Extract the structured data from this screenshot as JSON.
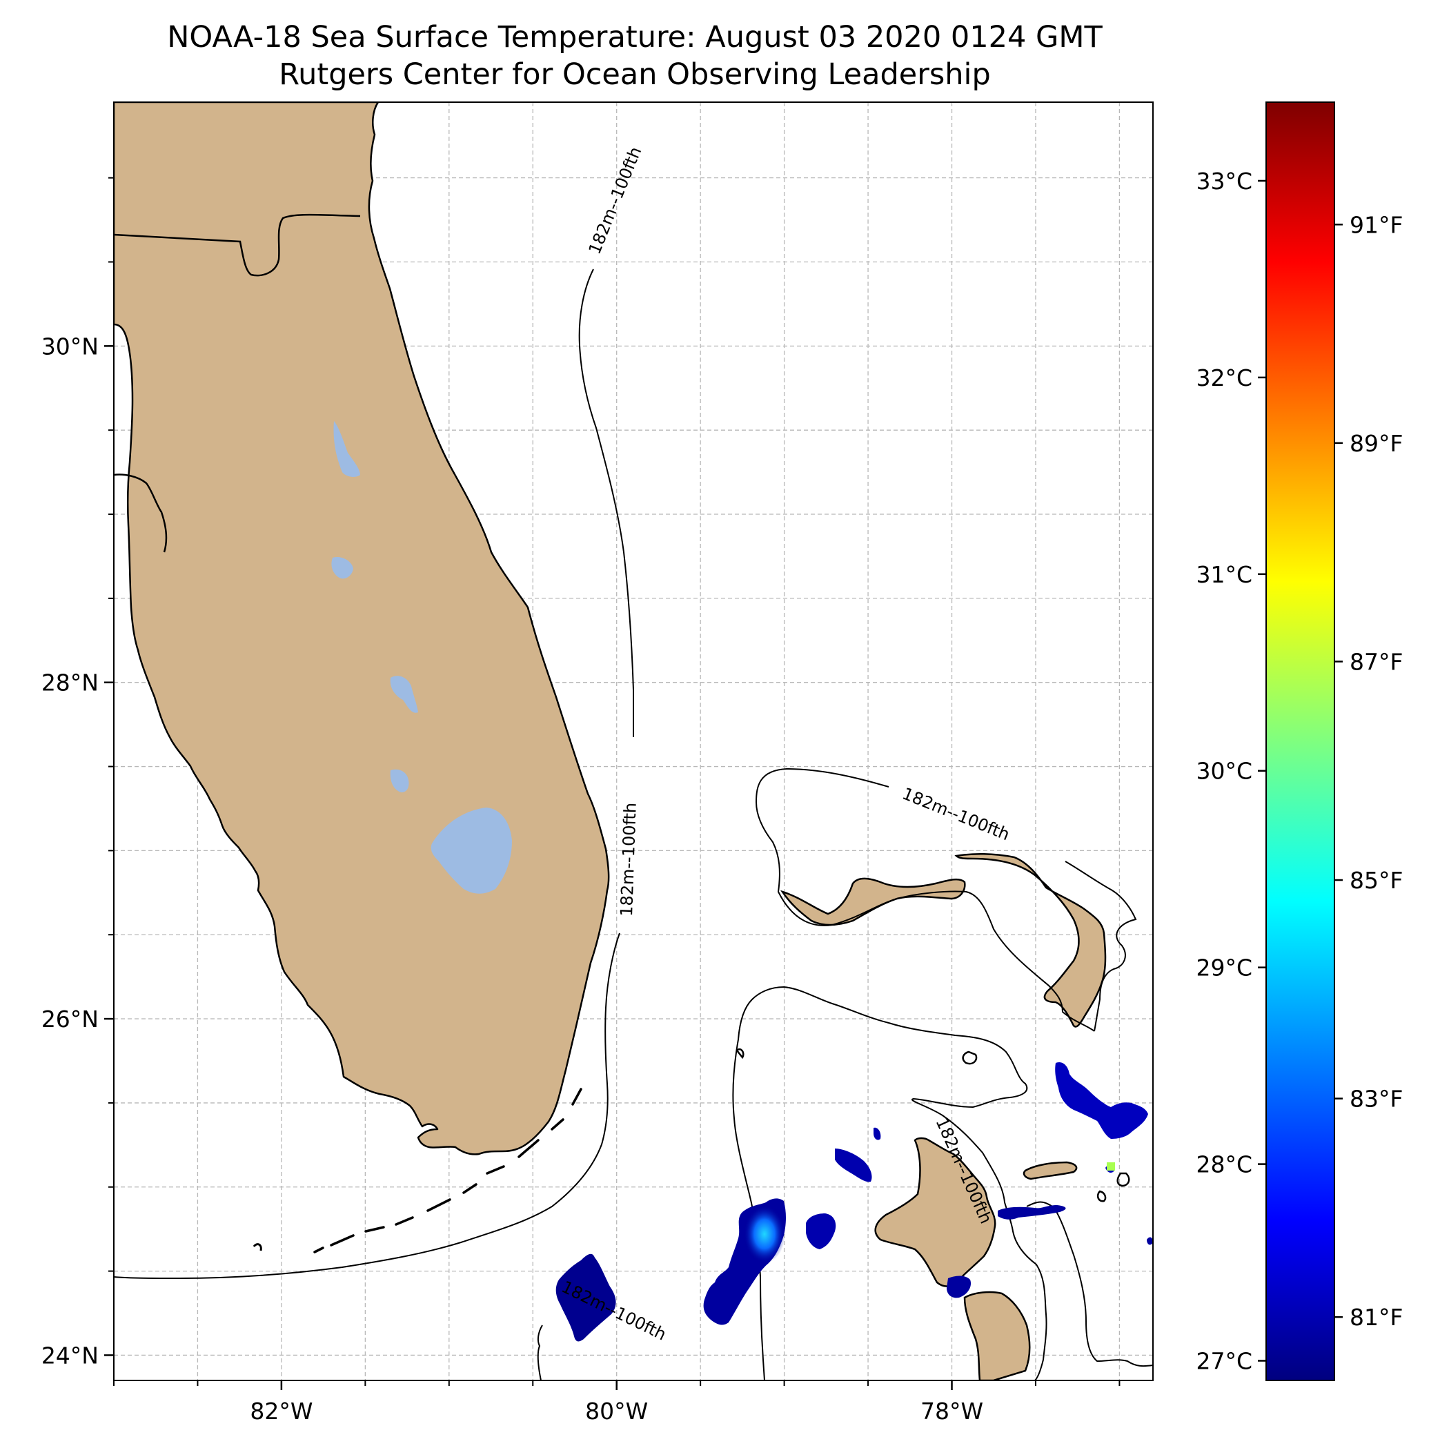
{
  "title": {
    "line1": "NOAA-18 Sea Surface Temperature: August 03 2020 0124 GMT",
    "line2": "Rutgers Center for Ocean Observing Leadership"
  },
  "map": {
    "lon_range": [
      -83.0,
      -76.8
    ],
    "lat_range": [
      23.85,
      31.45
    ],
    "lon_ticks": [
      {
        "value": -82,
        "label": "82°W"
      },
      {
        "value": -80,
        "label": "80°W"
      },
      {
        "value": -78,
        "label": "78°W"
      }
    ],
    "lat_ticks": [
      {
        "value": 24,
        "label": "24°N"
      },
      {
        "value": 26,
        "label": "26°N"
      },
      {
        "value": 28,
        "label": "28°N"
      },
      {
        "value": 30,
        "label": "30°N"
      }
    ],
    "gridlines": true,
    "land_color": "#d2b48c",
    "lake_color": "#9dbbe3",
    "isobath_label": "182m--100fth",
    "isobath_label_count": 5
  },
  "colorbar": {
    "colormap": "jet",
    "range_c": [
      26.9,
      33.4
    ],
    "celsius_ticks": [
      {
        "value": 27,
        "label": "27°C"
      },
      {
        "value": 28,
        "label": "28°C"
      },
      {
        "value": 29,
        "label": "29°C"
      },
      {
        "value": 30,
        "label": "30°C"
      },
      {
        "value": 31,
        "label": "31°C"
      },
      {
        "value": 32,
        "label": "32°C"
      },
      {
        "value": 33,
        "label": "33°C"
      }
    ],
    "fahrenheit_ticks": [
      {
        "value": 81,
        "label": "81°F"
      },
      {
        "value": 83,
        "label": "83°F"
      },
      {
        "value": 85,
        "label": "85°F"
      },
      {
        "value": 87,
        "label": "87°F"
      },
      {
        "value": 89,
        "label": "89°F"
      },
      {
        "value": 91,
        "label": "91°F"
      }
    ]
  },
  "sst_patches": [
    {
      "name": "patch-southwest",
      "temp_c": 27.0
    },
    {
      "name": "patch-south-central",
      "temp_c": 27.1
    },
    {
      "name": "patch-central",
      "temp_c": 27.2
    },
    {
      "name": "patch-northeast",
      "temp_c": 27.3
    },
    {
      "name": "patch-bahamas",
      "temp_c": 27.1
    }
  ],
  "colors": {
    "jet_stops": [
      "#00007f",
      "#0000ff",
      "#007fff",
      "#00ffff",
      "#7fff7f",
      "#ffff00",
      "#ff7f00",
      "#ff0000",
      "#7f0000"
    ]
  }
}
